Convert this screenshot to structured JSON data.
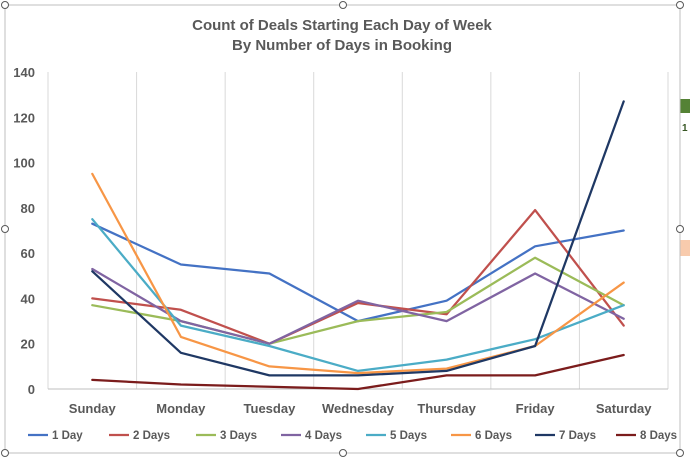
{
  "chart_data": {
    "type": "line",
    "title": "Count of Deals Starting Each Day of Week",
    "subtitle": "By Number of Days in Booking",
    "xlabel": "",
    "ylabel": "",
    "categories": [
      "Sunday",
      "Monday",
      "Tuesday",
      "Wednesday",
      "Thursday",
      "Friday",
      "Saturday"
    ],
    "ylim": [
      0,
      140
    ],
    "yticks": [
      0,
      20,
      40,
      60,
      80,
      100,
      120,
      140
    ],
    "grid": "vertical",
    "legend": "bottom",
    "series": [
      {
        "name": "1 Day",
        "color": "#4472C4",
        "values": [
          73,
          55,
          51,
          30,
          39,
          63,
          70
        ]
      },
      {
        "name": "2 Days",
        "color": "#C0504D",
        "values": [
          40,
          35,
          20,
          38,
          33,
          79,
          28
        ]
      },
      {
        "name": "3 Days",
        "color": "#9BBB59",
        "values": [
          37,
          30,
          20,
          30,
          34,
          58,
          37
        ]
      },
      {
        "name": "4 Days",
        "color": "#8064A2",
        "values": [
          53,
          30,
          20,
          39,
          30,
          51,
          31
        ]
      },
      {
        "name": "5 Days",
        "color": "#4BACC6",
        "values": [
          75,
          28,
          19,
          8,
          13,
          22,
          37
        ]
      },
      {
        "name": "6 Days",
        "color": "#F79646",
        "values": [
          95,
          23,
          10,
          7,
          9,
          19,
          47
        ]
      },
      {
        "name": "7 Days",
        "color": "#1F3864",
        "values": [
          52,
          16,
          6,
          6,
          8,
          19,
          127
        ]
      },
      {
        "name": "8 Days",
        "color": "#7B1C1C",
        "values": [
          4,
          2,
          1,
          0,
          6,
          6,
          15
        ]
      }
    ]
  },
  "background_cells": [
    {
      "text": "1",
      "color": "#70AD47"
    }
  ]
}
